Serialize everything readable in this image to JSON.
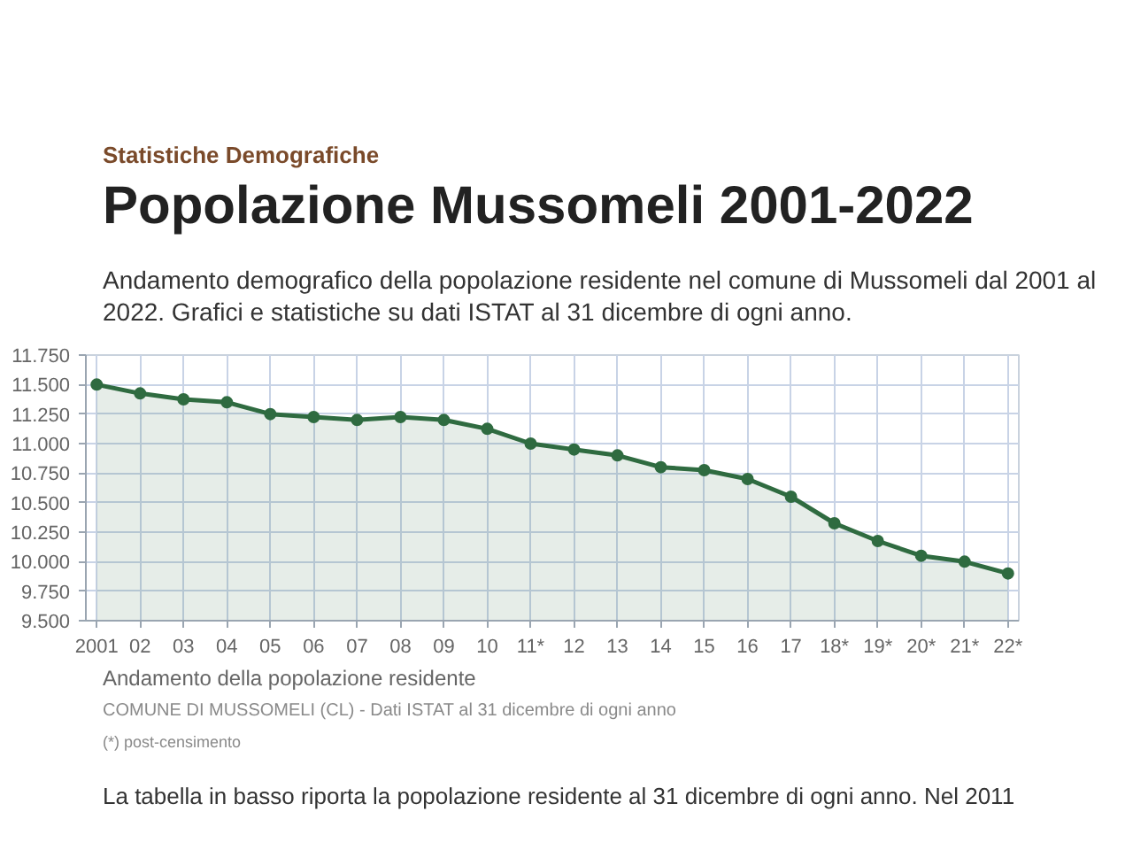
{
  "chart_data": {
    "type": "area",
    "title": "Popolazione Mussomeli 2001-2022",
    "subtitle": "Andamento demografico della popolazione residente nel comune di Mussomeli dal 2001 al 2022. Grafici e statistiche su dati ISTAT al 31 dicembre di ogni anno.",
    "annotations": [
      "Statistiche Demografiche",
      "Andamento della popolazione residente",
      "COMUNE DI MUSSOMELI (CL) - Dati ISTAT al 31 dicembre di ogni anno",
      "(*) post-censimento",
      "La tabella in basso riporta la popolazione residente al 31 dicembre di ogni anno. Nel 2011"
    ],
    "categories": [
      "2001",
      "02",
      "03",
      "04",
      "05",
      "06",
      "07",
      "08",
      "09",
      "10",
      "11*",
      "12",
      "13",
      "14",
      "15",
      "16",
      "17",
      "18*",
      "19*",
      "20*",
      "21*",
      "22*"
    ],
    "values": [
      11500,
      11425,
      11375,
      11350,
      11250,
      11225,
      11200,
      11225,
      11200,
      11125,
      11000,
      10950,
      10900,
      10800,
      10775,
      10700,
      10550,
      10325,
      10175,
      10050,
      10000,
      9900
    ],
    "color": "#2f6b40",
    "ylim": [
      9500,
      11750
    ],
    "yticks": [
      {
        "value": 9500,
        "label": "9.500"
      },
      {
        "value": 9750,
        "label": "9.750"
      },
      {
        "value": 10000,
        "label": "10.000"
      },
      {
        "value": 10250,
        "label": "10.250"
      },
      {
        "value": 10500,
        "label": "10.500"
      },
      {
        "value": 10750,
        "label": "10.750"
      },
      {
        "value": 11000,
        "label": "11.000"
      },
      {
        "value": 11250,
        "label": "11.250"
      },
      {
        "value": 11500,
        "label": "11.500"
      },
      {
        "value": 11750,
        "label": "11.750"
      }
    ],
    "grid": true,
    "marker": "circle",
    "line_style": "solid"
  }
}
